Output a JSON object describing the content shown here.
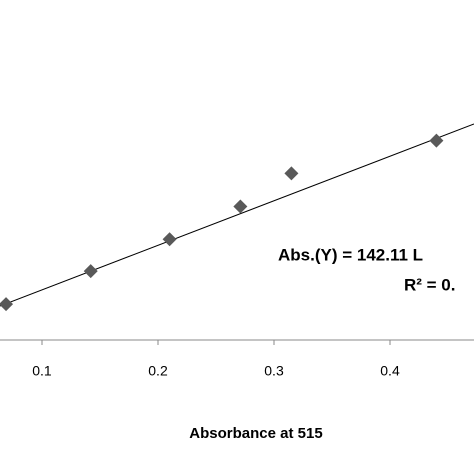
{
  "chart_data": {
    "type": "scatter",
    "x_label": "Absorbance at 515",
    "annotations": [
      "Abs.(Y) = 142.11 L",
      "R² = 0."
    ],
    "x": [
      0.069,
      0.142,
      0.21,
      0.271,
      0.315,
      0.44
    ],
    "values": [
      11.6,
      22.3,
      32.6,
      43.2,
      53.9,
      64.5
    ],
    "color": "#595959",
    "trendline": {
      "x": [
        0.0638,
        0.4724
      ],
      "values": [
        11.0,
        69.9
      ],
      "color": "#000000"
    },
    "xlim": [
      0.0638,
      0.4724
    ],
    "xticks": [
      0.1,
      0.2,
      0.3,
      0.4
    ],
    "ylim": [
      0,
      110
    ]
  }
}
